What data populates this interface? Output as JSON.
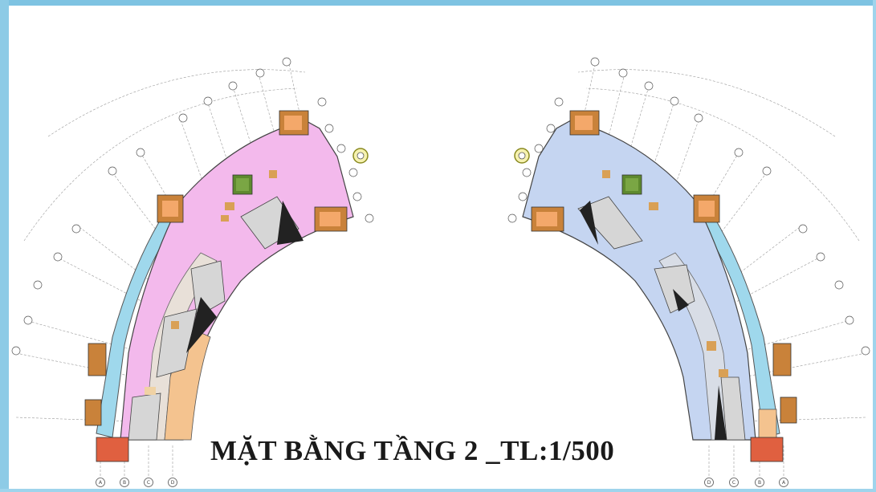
{
  "drawing": {
    "title": "MẶT BẰNG TẦNG 2 _TL:1/500",
    "colors": {
      "left_wing_floor": "#f3b9ec",
      "right_wing_floor": "#c5d5f1",
      "corridor": "#9fd8ec",
      "stairs_core": "#c9823a",
      "light_orange_rooms": "#f4c38f",
      "void": "#d4d4d4",
      "green_atrium": "#5e8a2e",
      "frame_border": "#7ec3e2"
    },
    "grid_axes_left_bottom": [
      "A",
      "B",
      "C",
      "D"
    ],
    "grid_axes_right_bottom": [
      "D",
      "C",
      "B",
      "A"
    ]
  }
}
